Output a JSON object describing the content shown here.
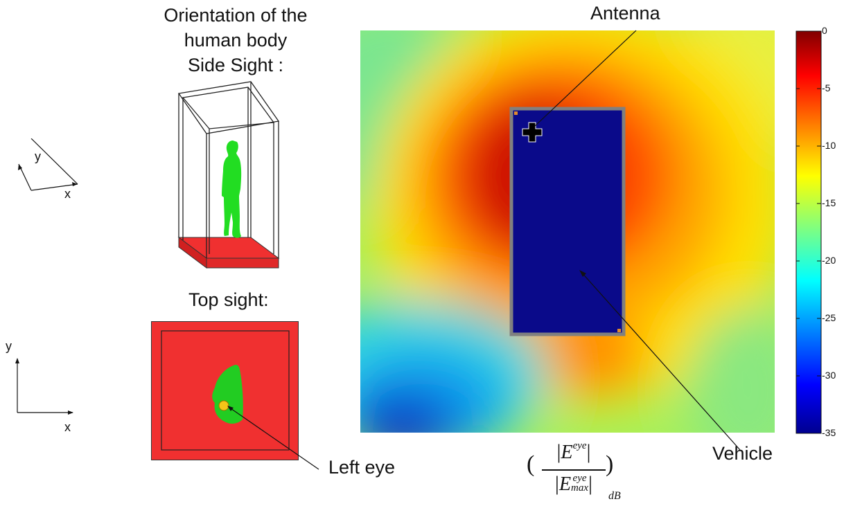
{
  "orientation": {
    "title_lines": [
      "Orientation of the",
      "human body",
      "Side Sight :"
    ],
    "top_sight_label": "Top sight:",
    "left_eye_label": "Left eye"
  },
  "axes_side": {
    "x": "x",
    "y": "y"
  },
  "axes_top": {
    "x": "x",
    "y": "y"
  },
  "heatmap": {
    "antenna_label": "Antenna",
    "vehicle_label": "Vehicle"
  },
  "colorbar": {
    "ticks": [
      "0",
      "-5",
      "-10",
      "-15",
      "-20",
      "-25",
      "-30",
      "-35"
    ],
    "range": [
      -35,
      0
    ],
    "colormap": "jet"
  },
  "formula": {
    "field": "E",
    "sup": "eye",
    "sub_max": "max",
    "unit": "dB"
  },
  "colors": {
    "body": "#22dd22",
    "floor": "#f03030",
    "vehicle": "#0a0a8a",
    "vehicle_border": "#808080",
    "eye": "#f5c518"
  }
}
